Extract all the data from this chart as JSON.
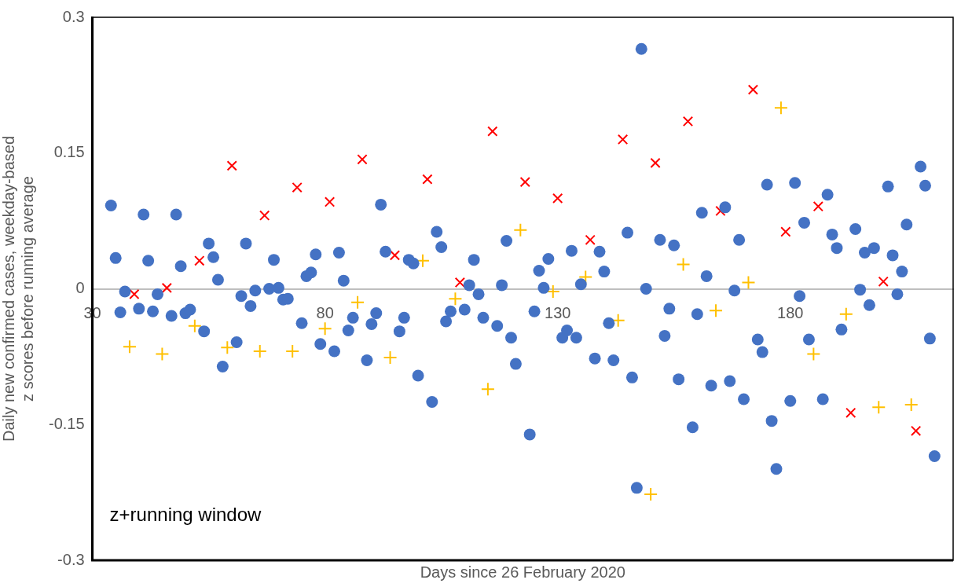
{
  "chart_data": {
    "type": "scatter",
    "xlabel": "Days since 26 February 2020",
    "ylabel": "Daily new confirmed cases, weekday-based z scores before running average",
    "annotations": [
      "z+running window"
    ],
    "xlim": [
      30,
      215
    ],
    "xticks": [
      30,
      80,
      130,
      180
    ],
    "ylim": [
      -0.3,
      0.3
    ],
    "yticks": [
      -0.3,
      -0.15,
      0,
      0.15,
      0.3
    ],
    "grid": false,
    "legend": false,
    "series": [
      {
        "color": "#4472c4",
        "marker": "circle",
        "x": [
          34,
          35,
          36,
          37,
          40,
          41,
          42,
          43,
          44,
          47,
          48,
          49,
          50,
          51,
          54,
          55,
          56,
          57,
          58,
          61,
          62,
          63,
          64,
          65,
          68,
          69,
          70,
          71,
          72,
          75,
          76,
          77,
          78,
          79,
          82,
          83,
          84,
          85,
          86,
          89,
          90,
          91,
          92,
          93,
          96,
          97,
          98,
          99,
          100,
          103,
          104,
          105,
          106,
          107,
          110,
          111,
          112,
          113,
          114,
          117,
          118,
          119,
          120,
          121,
          124,
          125,
          126,
          127,
          128,
          131,
          132,
          133,
          134,
          135,
          138,
          139,
          140,
          141,
          142,
          145,
          146,
          147,
          148,
          149,
          152,
          153,
          154,
          155,
          156,
          159,
          160,
          161,
          162,
          163,
          166,
          167,
          168,
          169,
          170,
          173,
          174,
          175,
          176,
          177,
          180,
          181,
          182,
          183,
          184,
          187,
          188,
          189,
          190,
          191,
          194,
          195,
          196,
          197,
          198,
          201,
          202,
          203,
          204,
          205,
          208,
          209,
          210,
          211
        ],
        "values": [
          0.092,
          0.034,
          -0.026,
          -0.003,
          -0.022,
          0.082,
          0.031,
          -0.025,
          -0.006,
          -0.03,
          0.082,
          0.025,
          -0.027,
          -0.023,
          -0.047,
          0.05,
          0.035,
          0.01,
          -0.086,
          -0.059,
          -0.008,
          0.05,
          -0.019,
          -0.002,
          0.0,
          0.032,
          0.001,
          -0.012,
          -0.011,
          -0.038,
          0.014,
          0.018,
          0.038,
          -0.061,
          -0.069,
          0.04,
          0.009,
          -0.046,
          -0.032,
          -0.079,
          -0.039,
          -0.027,
          0.093,
          0.041,
          -0.047,
          -0.032,
          0.032,
          0.028,
          -0.096,
          -0.125,
          0.063,
          0.046,
          -0.036,
          -0.025,
          -0.023,
          0.004,
          0.032,
          -0.006,
          -0.032,
          -0.041,
          0.004,
          0.053,
          -0.054,
          -0.083,
          -0.161,
          -0.025,
          0.02,
          0.001,
          0.033,
          -0.054,
          -0.046,
          0.042,
          -0.054,
          0.005,
          -0.077,
          0.041,
          0.019,
          -0.038,
          -0.079,
          0.062,
          -0.098,
          -0.22,
          0.265,
          0.0,
          0.054,
          -0.052,
          -0.022,
          0.048,
          -0.1,
          -0.153,
          -0.028,
          0.084,
          0.014,
          -0.107,
          0.09,
          -0.102,
          -0.002,
          0.054,
          -0.122,
          -0.056,
          -0.07,
          0.115,
          -0.146,
          -0.199,
          -0.124,
          0.117,
          -0.008,
          0.073,
          -0.056,
          -0.122,
          0.104,
          0.06,
          0.045,
          -0.045,
          0.066,
          -0.001,
          0.04,
          -0.018,
          0.045,
          0.113,
          0.037,
          -0.006,
          0.019,
          0.071,
          0.135,
          0.114,
          -0.055,
          -0.185
        ]
      },
      {
        "color": "#ff0000",
        "marker": "cross",
        "x": [
          39,
          46,
          53,
          60,
          67,
          74,
          81,
          88,
          95,
          102,
          109,
          116,
          123,
          130,
          137,
          144,
          151,
          158,
          165,
          172,
          179,
          186,
          193,
          200,
          207
        ],
        "values": [
          -0.006,
          0.001,
          0.031,
          0.136,
          0.081,
          0.112,
          0.096,
          0.143,
          0.037,
          0.121,
          0.007,
          0.174,
          0.118,
          0.1,
          0.054,
          0.165,
          0.139,
          0.185,
          0.086,
          0.22,
          0.063,
          0.091,
          -0.137,
          0.008,
          -0.157
        ]
      },
      {
        "color": "#ffc000",
        "marker": "plus",
        "x": [
          38,
          45,
          52,
          59,
          66,
          73,
          80,
          87,
          94,
          101,
          108,
          115,
          122,
          129,
          136,
          143,
          150,
          157,
          164,
          171,
          178,
          185,
          192,
          199,
          206
        ],
        "values": [
          -0.064,
          -0.072,
          -0.041,
          -0.065,
          -0.069,
          -0.069,
          -0.044,
          -0.015,
          -0.076,
          0.031,
          -0.011,
          -0.111,
          0.065,
          -0.003,
          0.013,
          -0.035,
          -0.227,
          0.027,
          -0.024,
          0.007,
          0.2,
          -0.072,
          -0.028,
          -0.131,
          -0.128
        ]
      }
    ]
  }
}
